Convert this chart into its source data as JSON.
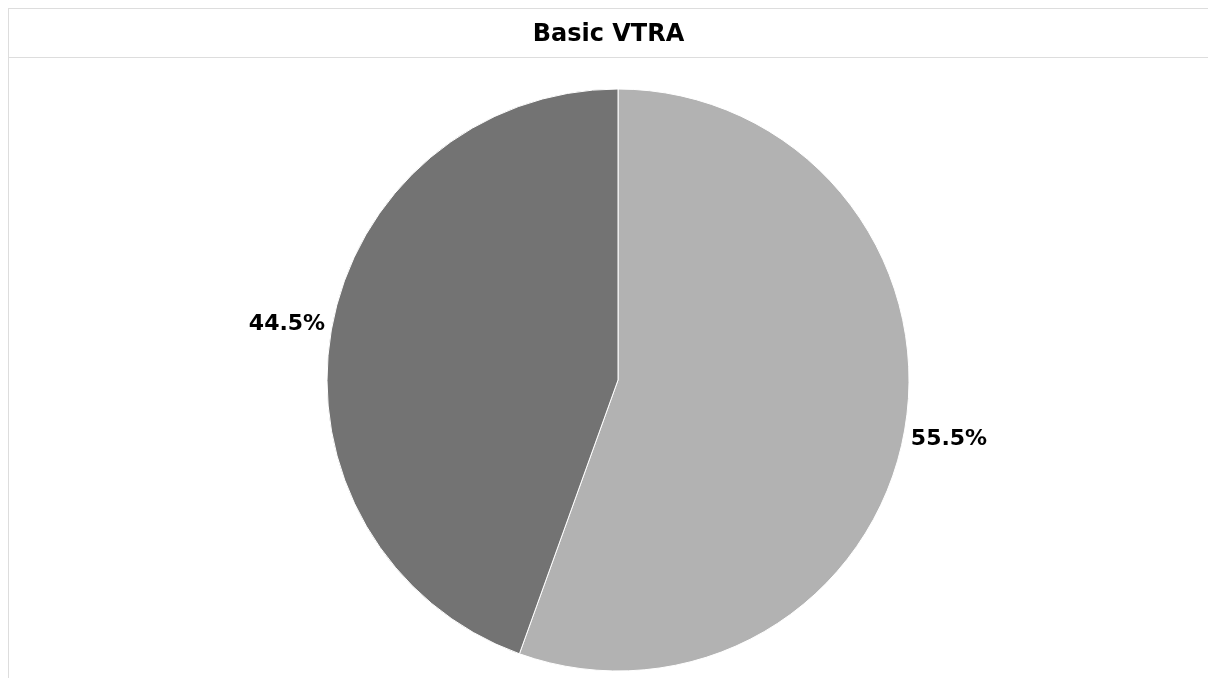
{
  "chart_data": {
    "type": "pie",
    "title": "Basic VTRA",
    "categories": [
      null,
      null
    ],
    "values": [
      55.5,
      44.5
    ],
    "colors": [
      "#b2b2b2",
      "#737373"
    ],
    "value_labels": [
      "55.5%",
      "44.5%"
    ],
    "legend": false
  }
}
